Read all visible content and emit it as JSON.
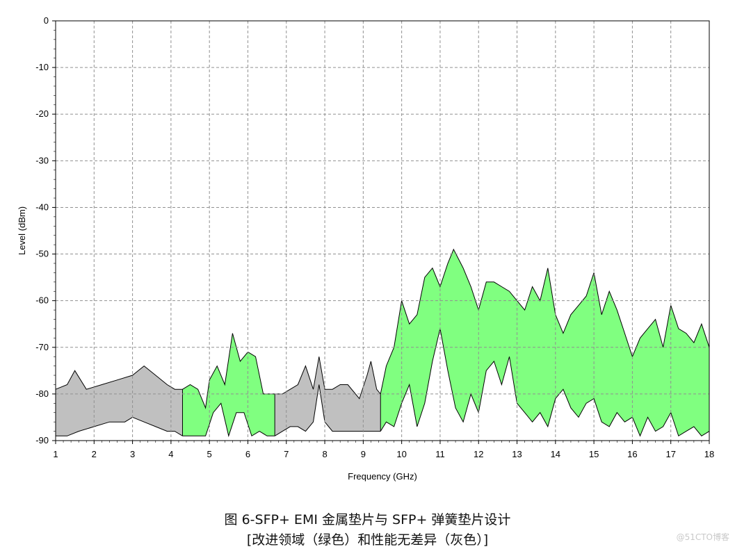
{
  "chart_data": {
    "type": "area",
    "xlabel": "Frequency (GHz)",
    "ylabel": "Level (dBm)",
    "xlim": [
      1,
      18
    ],
    "ylim": [
      -90,
      0
    ],
    "x_ticks": [
      "1",
      "2",
      "3",
      "4",
      "5",
      "6",
      "7",
      "8",
      "9",
      "10",
      "11",
      "12",
      "13",
      "14",
      "15",
      "16",
      "17",
      "18"
    ],
    "y_ticks": [
      "0",
      "-10",
      "-20",
      "-30",
      "-40",
      "-50",
      "-60",
      "-70",
      "-80",
      "-90"
    ],
    "grid": true,
    "colors": {
      "improved": "#80ff80",
      "no_difference": "#c0c0c0",
      "outline": "#000000",
      "grid": "#909090"
    },
    "series": [
      {
        "category": "no_difference",
        "x_range": [
          1.0,
          4.3
        ],
        "upper": [
          [
            1.0,
            -79
          ],
          [
            1.3,
            -78
          ],
          [
            1.5,
            -75
          ],
          [
            1.8,
            -79
          ],
          [
            2.2,
            -78
          ],
          [
            2.6,
            -77
          ],
          [
            3.0,
            -76
          ],
          [
            3.3,
            -74
          ],
          [
            3.6,
            -76
          ],
          [
            3.9,
            -78
          ],
          [
            4.1,
            -79
          ],
          [
            4.3,
            -79
          ]
        ],
        "lower": [
          [
            1.0,
            -89
          ],
          [
            1.3,
            -89
          ],
          [
            1.6,
            -88
          ],
          [
            2.0,
            -87
          ],
          [
            2.4,
            -86
          ],
          [
            2.8,
            -86
          ],
          [
            3.0,
            -85
          ],
          [
            3.3,
            -86
          ],
          [
            3.6,
            -87
          ],
          [
            3.9,
            -88
          ],
          [
            4.1,
            -88
          ],
          [
            4.3,
            -89
          ]
        ]
      },
      {
        "category": "improved",
        "x_range": [
          4.3,
          6.7
        ],
        "upper": [
          [
            4.3,
            -79
          ],
          [
            4.5,
            -78
          ],
          [
            4.7,
            -79
          ],
          [
            4.9,
            -83
          ],
          [
            5.0,
            -77
          ],
          [
            5.2,
            -74
          ],
          [
            5.4,
            -78
          ],
          [
            5.6,
            -67
          ],
          [
            5.8,
            -73
          ],
          [
            6.0,
            -71
          ],
          [
            6.2,
            -72
          ],
          [
            6.4,
            -80
          ],
          [
            6.55,
            -80
          ],
          [
            6.7,
            -80
          ]
        ],
        "lower": [
          [
            4.3,
            -89
          ],
          [
            4.5,
            -89
          ],
          [
            4.7,
            -89
          ],
          [
            4.9,
            -89
          ],
          [
            5.1,
            -84
          ],
          [
            5.3,
            -82
          ],
          [
            5.5,
            -89
          ],
          [
            5.7,
            -84
          ],
          [
            5.9,
            -84
          ],
          [
            6.1,
            -89
          ],
          [
            6.3,
            -88
          ],
          [
            6.5,
            -89
          ],
          [
            6.7,
            -89
          ]
        ]
      },
      {
        "category": "no_difference",
        "x_range": [
          6.7,
          9.45
        ],
        "upper": [
          [
            6.7,
            -80
          ],
          [
            6.9,
            -80
          ],
          [
            7.1,
            -79
          ],
          [
            7.3,
            -78
          ],
          [
            7.5,
            -74
          ],
          [
            7.7,
            -79
          ],
          [
            7.85,
            -72
          ],
          [
            8.0,
            -79
          ],
          [
            8.2,
            -79
          ],
          [
            8.4,
            -78
          ],
          [
            8.6,
            -78
          ],
          [
            8.9,
            -81
          ],
          [
            9.1,
            -76
          ],
          [
            9.2,
            -73
          ],
          [
            9.35,
            -79
          ],
          [
            9.45,
            -80
          ]
        ],
        "lower": [
          [
            6.7,
            -89
          ],
          [
            6.9,
            -88
          ],
          [
            7.1,
            -87
          ],
          [
            7.3,
            -87
          ],
          [
            7.5,
            -88
          ],
          [
            7.7,
            -86
          ],
          [
            7.85,
            -78
          ],
          [
            8.0,
            -86
          ],
          [
            8.2,
            -88
          ],
          [
            8.4,
            -88
          ],
          [
            8.6,
            -88
          ],
          [
            8.9,
            -88
          ],
          [
            9.2,
            -88
          ],
          [
            9.45,
            -88
          ]
        ]
      },
      {
        "category": "improved",
        "x_range": [
          9.45,
          18.0
        ],
        "upper": [
          [
            9.45,
            -80
          ],
          [
            9.6,
            -74
          ],
          [
            9.8,
            -70
          ],
          [
            10.0,
            -60
          ],
          [
            10.2,
            -65
          ],
          [
            10.4,
            -63
          ],
          [
            10.6,
            -55
          ],
          [
            10.8,
            -53
          ],
          [
            11.0,
            -57
          ],
          [
            11.2,
            -52
          ],
          [
            11.35,
            -49
          ],
          [
            11.6,
            -53
          ],
          [
            11.8,
            -57
          ],
          [
            12.0,
            -62
          ],
          [
            12.2,
            -56
          ],
          [
            12.4,
            -56
          ],
          [
            12.6,
            -57
          ],
          [
            12.8,
            -58
          ],
          [
            13.0,
            -60
          ],
          [
            13.2,
            -62
          ],
          [
            13.4,
            -57
          ],
          [
            13.6,
            -60
          ],
          [
            13.8,
            -53
          ],
          [
            14.0,
            -63
          ],
          [
            14.2,
            -67
          ],
          [
            14.4,
            -63
          ],
          [
            14.6,
            -61
          ],
          [
            14.8,
            -59
          ],
          [
            15.0,
            -54
          ],
          [
            15.2,
            -63
          ],
          [
            15.4,
            -58
          ],
          [
            15.6,
            -62
          ],
          [
            15.8,
            -67
          ],
          [
            16.0,
            -72
          ],
          [
            16.2,
            -68
          ],
          [
            16.4,
            -66
          ],
          [
            16.6,
            -64
          ],
          [
            16.8,
            -70
          ],
          [
            17.0,
            -61
          ],
          [
            17.2,
            -66
          ],
          [
            17.4,
            -67
          ],
          [
            17.6,
            -69
          ],
          [
            17.8,
            -65
          ],
          [
            18.0,
            -70
          ]
        ],
        "lower": [
          [
            9.45,
            -88
          ],
          [
            9.6,
            -86
          ],
          [
            9.8,
            -87
          ],
          [
            10.0,
            -82
          ],
          [
            10.2,
            -78
          ],
          [
            10.4,
            -87
          ],
          [
            10.6,
            -82
          ],
          [
            10.8,
            -73
          ],
          [
            11.0,
            -66
          ],
          [
            11.2,
            -75
          ],
          [
            11.4,
            -83
          ],
          [
            11.6,
            -86
          ],
          [
            11.8,
            -80
          ],
          [
            12.0,
            -84
          ],
          [
            12.2,
            -75
          ],
          [
            12.4,
            -73
          ],
          [
            12.6,
            -78
          ],
          [
            12.8,
            -72
          ],
          [
            13.0,
            -82
          ],
          [
            13.2,
            -84
          ],
          [
            13.4,
            -86
          ],
          [
            13.6,
            -84
          ],
          [
            13.8,
            -87
          ],
          [
            14.0,
            -81
          ],
          [
            14.2,
            -79
          ],
          [
            14.4,
            -83
          ],
          [
            14.6,
            -85
          ],
          [
            14.8,
            -82
          ],
          [
            15.0,
            -81
          ],
          [
            15.2,
            -86
          ],
          [
            15.4,
            -87
          ],
          [
            15.6,
            -84
          ],
          [
            15.8,
            -86
          ],
          [
            16.0,
            -85
          ],
          [
            16.2,
            -89
          ],
          [
            16.4,
            -85
          ],
          [
            16.6,
            -88
          ],
          [
            16.8,
            -87
          ],
          [
            17.0,
            -84
          ],
          [
            17.2,
            -89
          ],
          [
            17.4,
            -88
          ],
          [
            17.6,
            -87
          ],
          [
            17.8,
            -89
          ],
          [
            18.0,
            -88
          ]
        ]
      }
    ]
  },
  "caption": {
    "line1": "图 6-SFP+ EMI 金属垫片与 SFP+ 弹簧垫片设计",
    "line2": "[改进领域（绿色）和性能无差异（灰色）]"
  },
  "watermark": "@51CTO博客"
}
